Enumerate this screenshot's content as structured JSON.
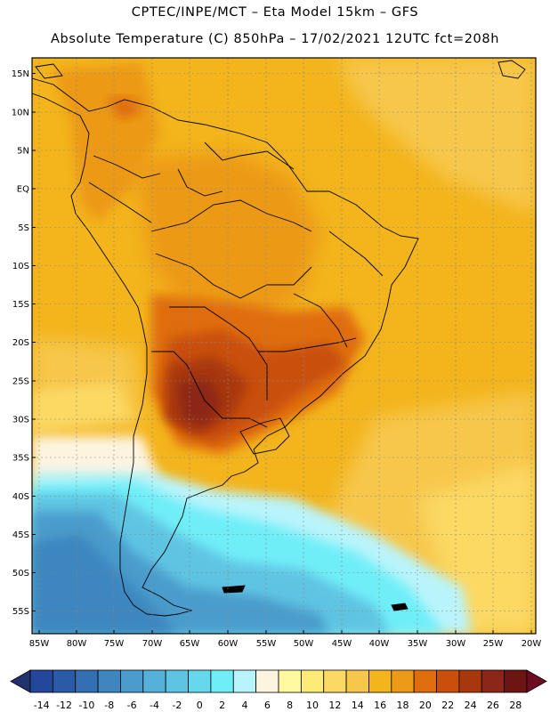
{
  "header": {
    "line1": "CPTEC/INPE/MCT –  Eta Model 15km – GFS",
    "line2": "Absolute Temperature (C) 850hPa – 17/02/2021 12UTC fct=208h"
  },
  "axes": {
    "lat_labels": [
      "15N",
      "10N",
      "5N",
      "EQ",
      "5S",
      "10S",
      "15S",
      "20S",
      "25S",
      "30S",
      "35S",
      "40S",
      "45S",
      "50S",
      "55S"
    ],
    "lon_labels": [
      "85W",
      "80W",
      "75W",
      "70W",
      "65W",
      "60W",
      "55W",
      "50W",
      "45W",
      "40W",
      "35W",
      "30W",
      "25W",
      "20W"
    ]
  },
  "colorbar": {
    "tick_labels": [
      "-14",
      "-12",
      "-10",
      "-8",
      "-6",
      "-4",
      "-2",
      "0",
      "2",
      "4",
      "6",
      "8",
      "10",
      "12",
      "14",
      "16",
      "18",
      "20",
      "22",
      "24",
      "26",
      "28"
    ],
    "colors": [
      "#23479a",
      "#2b5aa6",
      "#3270b3",
      "#3d86bf",
      "#4a9ccc",
      "#56b1d8",
      "#5fc4e2",
      "#66d8ec",
      "#6feef8",
      "#b9f4fb",
      "#fdf4e0",
      "#fff9a0",
      "#fdeb78",
      "#fbd964",
      "#f7c74b",
      "#f3b41c",
      "#ec9a18",
      "#e06d0c",
      "#c94f0a",
      "#a8380c",
      "#8c2616",
      "#6d1512"
    ],
    "under_color": "#22326e",
    "over_color": "#6d0d22"
  }
}
